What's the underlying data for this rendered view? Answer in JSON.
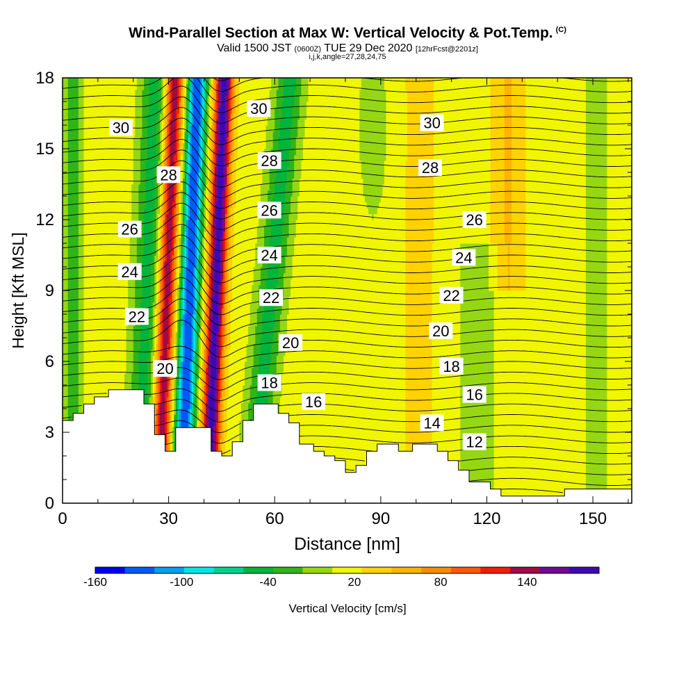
{
  "header": {
    "title": "Wind-Parallel Section at Max W: Vertical Velocity & Pot.Temp.",
    "copyright": "(C)",
    "valid_prefix": "Valid 1500 JST",
    "valid_utc": "(0600Z)",
    "valid_date": "TUE 29 Dec 2020",
    "forecast": "[12hrFcst@2201z]",
    "indices": "i,j,k,angle=27,28,24,75"
  },
  "chart_data": {
    "type": "heatmap",
    "xlabel": "Distance [nm]",
    "ylabel": "Height [Kft MSL]",
    "xlim": [
      0,
      161
    ],
    "ylim": [
      0,
      18
    ],
    "x_ticks": [
      0,
      30,
      60,
      90,
      120,
      150
    ],
    "y_ticks": [
      0,
      3,
      6,
      9,
      12,
      15,
      18
    ],
    "grid": false,
    "colorbar": {
      "label": "Vertical Velocity [cm/s]",
      "tick_labels": [
        "-160",
        "-100",
        "-40",
        "20",
        "80",
        "140"
      ],
      "tick_values": [
        -160,
        -100,
        -40,
        20,
        80,
        140
      ],
      "min": -160,
      "max": 190,
      "step": 20,
      "colors": [
        "#0000f0",
        "#005af8",
        "#00a0f4",
        "#00e6e6",
        "#00d28c",
        "#00b43c",
        "#30b418",
        "#96d714",
        "#f0f500",
        "#ffd200",
        "#ffb400",
        "#ff8c00",
        "#ff5a00",
        "#f01e00",
        "#a00a46",
        "#6e0a96",
        "#3c0ab4"
      ]
    },
    "terrain": [
      [
        0,
        3.5
      ],
      [
        3,
        3.5
      ],
      [
        3,
        3.8
      ],
      [
        6,
        3.8
      ],
      [
        6,
        4.2
      ],
      [
        9,
        4.2
      ],
      [
        9,
        4.5
      ],
      [
        13,
        4.5
      ],
      [
        13,
        4.8
      ],
      [
        23,
        4.8
      ],
      [
        23,
        4.2
      ],
      [
        26,
        4.2
      ],
      [
        26,
        2.9
      ],
      [
        29,
        2.9
      ],
      [
        29,
        2.2
      ],
      [
        32,
        2.2
      ],
      [
        32,
        3.2
      ],
      [
        42,
        3.2
      ],
      [
        42,
        2.2
      ],
      [
        45,
        2.2
      ],
      [
        45,
        2.0
      ],
      [
        48,
        2.0
      ],
      [
        48,
        2.6
      ],
      [
        51,
        2.6
      ],
      [
        51,
        3.5
      ],
      [
        54,
        3.5
      ],
      [
        54,
        4.2
      ],
      [
        61,
        4.2
      ],
      [
        61,
        3.8
      ],
      [
        64,
        3.8
      ],
      [
        64,
        3.4
      ],
      [
        67,
        3.4
      ],
      [
        67,
        2.5
      ],
      [
        71,
        2.5
      ],
      [
        71,
        2.2
      ],
      [
        74,
        2.2
      ],
      [
        74,
        2.0
      ],
      [
        77,
        2.0
      ],
      [
        77,
        1.8
      ],
      [
        80,
        1.8
      ],
      [
        80,
        1.3
      ],
      [
        83,
        1.3
      ],
      [
        83,
        1.6
      ],
      [
        86,
        1.6
      ],
      [
        86,
        2.2
      ],
      [
        89,
        2.2
      ],
      [
        89,
        2.5
      ],
      [
        95,
        2.5
      ],
      [
        95,
        2.2
      ],
      [
        99,
        2.2
      ],
      [
        99,
        2.5
      ],
      [
        106,
        2.5
      ],
      [
        106,
        2.2
      ],
      [
        109,
        2.2
      ],
      [
        109,
        1.8
      ],
      [
        112,
        1.8
      ],
      [
        112,
        1.4
      ],
      [
        115,
        1.4
      ],
      [
        115,
        0.9
      ],
      [
        121,
        0.9
      ],
      [
        121,
        0.6
      ],
      [
        124,
        0.6
      ],
      [
        124,
        0.3
      ],
      [
        142,
        0.3
      ],
      [
        142,
        0.6
      ],
      [
        161,
        0.6
      ]
    ],
    "isentropes": [
      12,
      14,
      16,
      18,
      20,
      22,
      24,
      26,
      28,
      30
    ],
    "isentrope_labels": [
      {
        "text": "30",
        "x": 16.5,
        "y": 15.9
      },
      {
        "text": "30",
        "x": 55.5,
        "y": 16.7
      },
      {
        "text": "30",
        "x": 104.5,
        "y": 16.1
      },
      {
        "text": "28",
        "x": 30,
        "y": 13.9
      },
      {
        "text": "28",
        "x": 58.5,
        "y": 14.5
      },
      {
        "text": "28",
        "x": 104,
        "y": 14.2
      },
      {
        "text": "26",
        "x": 19,
        "y": 11.6
      },
      {
        "text": "26",
        "x": 58.5,
        "y": 12.4
      },
      {
        "text": "26",
        "x": 116.5,
        "y": 12.0
      },
      {
        "text": "24",
        "x": 19,
        "y": 9.8
      },
      {
        "text": "24",
        "x": 58.5,
        "y": 10.5
      },
      {
        "text": "24",
        "x": 113.5,
        "y": 10.4
      },
      {
        "text": "22",
        "x": 21,
        "y": 7.9
      },
      {
        "text": "22",
        "x": 59,
        "y": 8.7
      },
      {
        "text": "22",
        "x": 110,
        "y": 8.8
      },
      {
        "text": "20",
        "x": 29,
        "y": 5.7
      },
      {
        "text": "20",
        "x": 64.5,
        "y": 6.8
      },
      {
        "text": "20",
        "x": 107,
        "y": 7.3
      },
      {
        "text": "18",
        "x": 58.5,
        "y": 5.1
      },
      {
        "text": "18",
        "x": 110,
        "y": 5.8
      },
      {
        "text": "16",
        "x": 71,
        "y": 4.3
      },
      {
        "text": "16",
        "x": 116.5,
        "y": 4.6
      },
      {
        "text": "14",
        "x": 104.5,
        "y": 3.4
      },
      {
        "text": "12",
        "x": 116.5,
        "y": 2.6
      }
    ]
  }
}
